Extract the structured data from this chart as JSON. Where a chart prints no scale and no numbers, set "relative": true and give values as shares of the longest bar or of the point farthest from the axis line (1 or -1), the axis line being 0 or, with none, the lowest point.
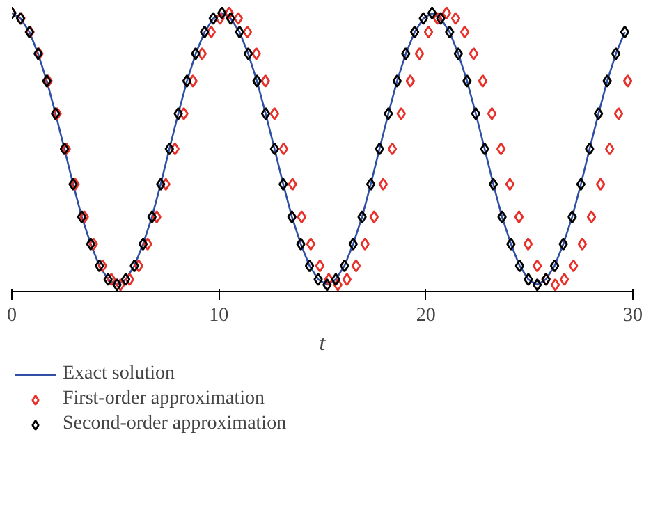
{
  "chart_data": {
    "type": "line",
    "relative": true,
    "xlabel": "t",
    "xlim": [
      0,
      30
    ],
    "xticks": [
      0,
      10,
      20,
      30
    ],
    "grid": false,
    "legend": "bottom",
    "series": [
      {
        "name": "Exact solution",
        "color": "#2e4fa3",
        "marker": "none",
        "line_style": "solid",
        "x": [
          0,
          0.42,
          0.85,
          1.27,
          1.69,
          2.11,
          2.54,
          2.96,
          3.38,
          3.81,
          4.23,
          4.65,
          5.08,
          5.5,
          5.92,
          6.34,
          6.77,
          7.19,
          7.61,
          8.04,
          8.46,
          8.88,
          9.31,
          9.73,
          10.15,
          10.57,
          11,
          11.42,
          11.84,
          12.26,
          12.69,
          13.11,
          13.53,
          13.96,
          14.38,
          14.8,
          15.23,
          15.65,
          16.07,
          16.49,
          16.92,
          17.34,
          17.76,
          18.19,
          18.61,
          19.03,
          19.46,
          19.88,
          20.3,
          20.72,
          21.15,
          21.57,
          21.99,
          22.41,
          22.84,
          23.26,
          23.68,
          24.11,
          24.53,
          24.95,
          25.38,
          25.8,
          26.22,
          26.64,
          27.07,
          27.49,
          27.91,
          28.34,
          28.76,
          29.18,
          29.61
        ],
        "values": [
          1,
          0.98,
          0.93,
          0.85,
          0.75,
          0.63,
          0.5,
          0.37,
          0.25,
          0.15,
          0.07,
          0.02,
          0,
          0.02,
          0.07,
          0.15,
          0.25,
          0.37,
          0.5,
          0.63,
          0.75,
          0.85,
          0.93,
          0.98,
          1,
          0.98,
          0.93,
          0.85,
          0.75,
          0.63,
          0.5,
          0.37,
          0.25,
          0.15,
          0.07,
          0.02,
          0,
          0.02,
          0.07,
          0.15,
          0.25,
          0.37,
          0.5,
          0.63,
          0.75,
          0.85,
          0.93,
          0.98,
          1,
          0.98,
          0.93,
          0.85,
          0.75,
          0.63,
          0.5,
          0.37,
          0.25,
          0.15,
          0.07,
          0.02,
          0,
          0.02,
          0.07,
          0.15,
          0.25,
          0.37,
          0.5,
          0.63,
          0.75,
          0.85,
          0.93
        ]
      },
      {
        "name": "First-order approximation",
        "type": "scatter",
        "color": "#e8302a",
        "marker": "diamond",
        "x": [
          0,
          0.44,
          0.88,
          1.31,
          1.75,
          2.19,
          2.63,
          3.06,
          3.5,
          3.94,
          4.38,
          4.81,
          5.25,
          5.69,
          6.13,
          6.56,
          7,
          7.44,
          7.88,
          8.31,
          8.75,
          9.19,
          9.63,
          10.06,
          10.5,
          10.94,
          11.38,
          11.81,
          12.25,
          12.69,
          13.13,
          13.56,
          14,
          14.44,
          14.88,
          15.31,
          15.75,
          16.19,
          16.63,
          17.06,
          17.5,
          17.94,
          18.38,
          18.81,
          19.25,
          19.69,
          20.13,
          20.56,
          21,
          21.44,
          21.88,
          22.31,
          22.75,
          23.19,
          23.63,
          24.06,
          24.5,
          24.94,
          25.38,
          25.81,
          26.25,
          26.69,
          27.13,
          27.56,
          28,
          28.44,
          28.88,
          29.31,
          29.75
        ],
        "values": [
          1,
          0.98,
          0.93,
          0.85,
          0.75,
          0.63,
          0.5,
          0.37,
          0.25,
          0.15,
          0.07,
          0.02,
          0,
          0.02,
          0.07,
          0.15,
          0.25,
          0.37,
          0.5,
          0.63,
          0.75,
          0.85,
          0.93,
          0.98,
          1,
          0.98,
          0.93,
          0.85,
          0.75,
          0.63,
          0.5,
          0.37,
          0.25,
          0.15,
          0.07,
          0.02,
          0,
          0.02,
          0.07,
          0.15,
          0.25,
          0.37,
          0.5,
          0.63,
          0.75,
          0.85,
          0.93,
          0.98,
          1,
          0.98,
          0.93,
          0.85,
          0.75,
          0.63,
          0.5,
          0.37,
          0.25,
          0.15,
          0.07,
          0.02,
          0,
          0.02,
          0.07,
          0.15,
          0.25,
          0.37,
          0.5,
          0.63,
          0.75
        ]
      },
      {
        "name": "Second-order approximation",
        "type": "scatter",
        "color": "#000000",
        "marker": "diamond",
        "x": [
          0,
          0.42,
          0.85,
          1.27,
          1.69,
          2.11,
          2.54,
          2.96,
          3.38,
          3.81,
          4.23,
          4.65,
          5.08,
          5.5,
          5.92,
          6.34,
          6.77,
          7.19,
          7.61,
          8.04,
          8.46,
          8.88,
          9.31,
          9.73,
          10.15,
          10.57,
          11,
          11.42,
          11.84,
          12.26,
          12.69,
          13.11,
          13.53,
          13.96,
          14.38,
          14.8,
          15.23,
          15.65,
          16.07,
          16.49,
          16.92,
          17.34,
          17.76,
          18.19,
          18.61,
          19.03,
          19.46,
          19.88,
          20.3,
          20.72,
          21.15,
          21.57,
          21.99,
          22.41,
          22.84,
          23.26,
          23.68,
          24.11,
          24.53,
          24.95,
          25.38,
          25.8,
          26.22,
          26.64,
          27.07,
          27.49,
          27.91,
          28.34,
          28.76,
          29.18,
          29.61
        ],
        "values": [
          1,
          0.98,
          0.93,
          0.85,
          0.75,
          0.63,
          0.5,
          0.37,
          0.25,
          0.15,
          0.07,
          0.02,
          0,
          0.02,
          0.07,
          0.15,
          0.25,
          0.37,
          0.5,
          0.63,
          0.75,
          0.85,
          0.93,
          0.98,
          1,
          0.98,
          0.93,
          0.85,
          0.75,
          0.63,
          0.5,
          0.37,
          0.25,
          0.15,
          0.07,
          0.02,
          0,
          0.02,
          0.07,
          0.15,
          0.25,
          0.37,
          0.5,
          0.63,
          0.75,
          0.85,
          0.93,
          0.98,
          1,
          0.98,
          0.93,
          0.85,
          0.75,
          0.63,
          0.5,
          0.37,
          0.25,
          0.15,
          0.07,
          0.02,
          0,
          0.02,
          0.07,
          0.15,
          0.25,
          0.37,
          0.5,
          0.63,
          0.75,
          0.85,
          0.93
        ]
      }
    ]
  }
}
